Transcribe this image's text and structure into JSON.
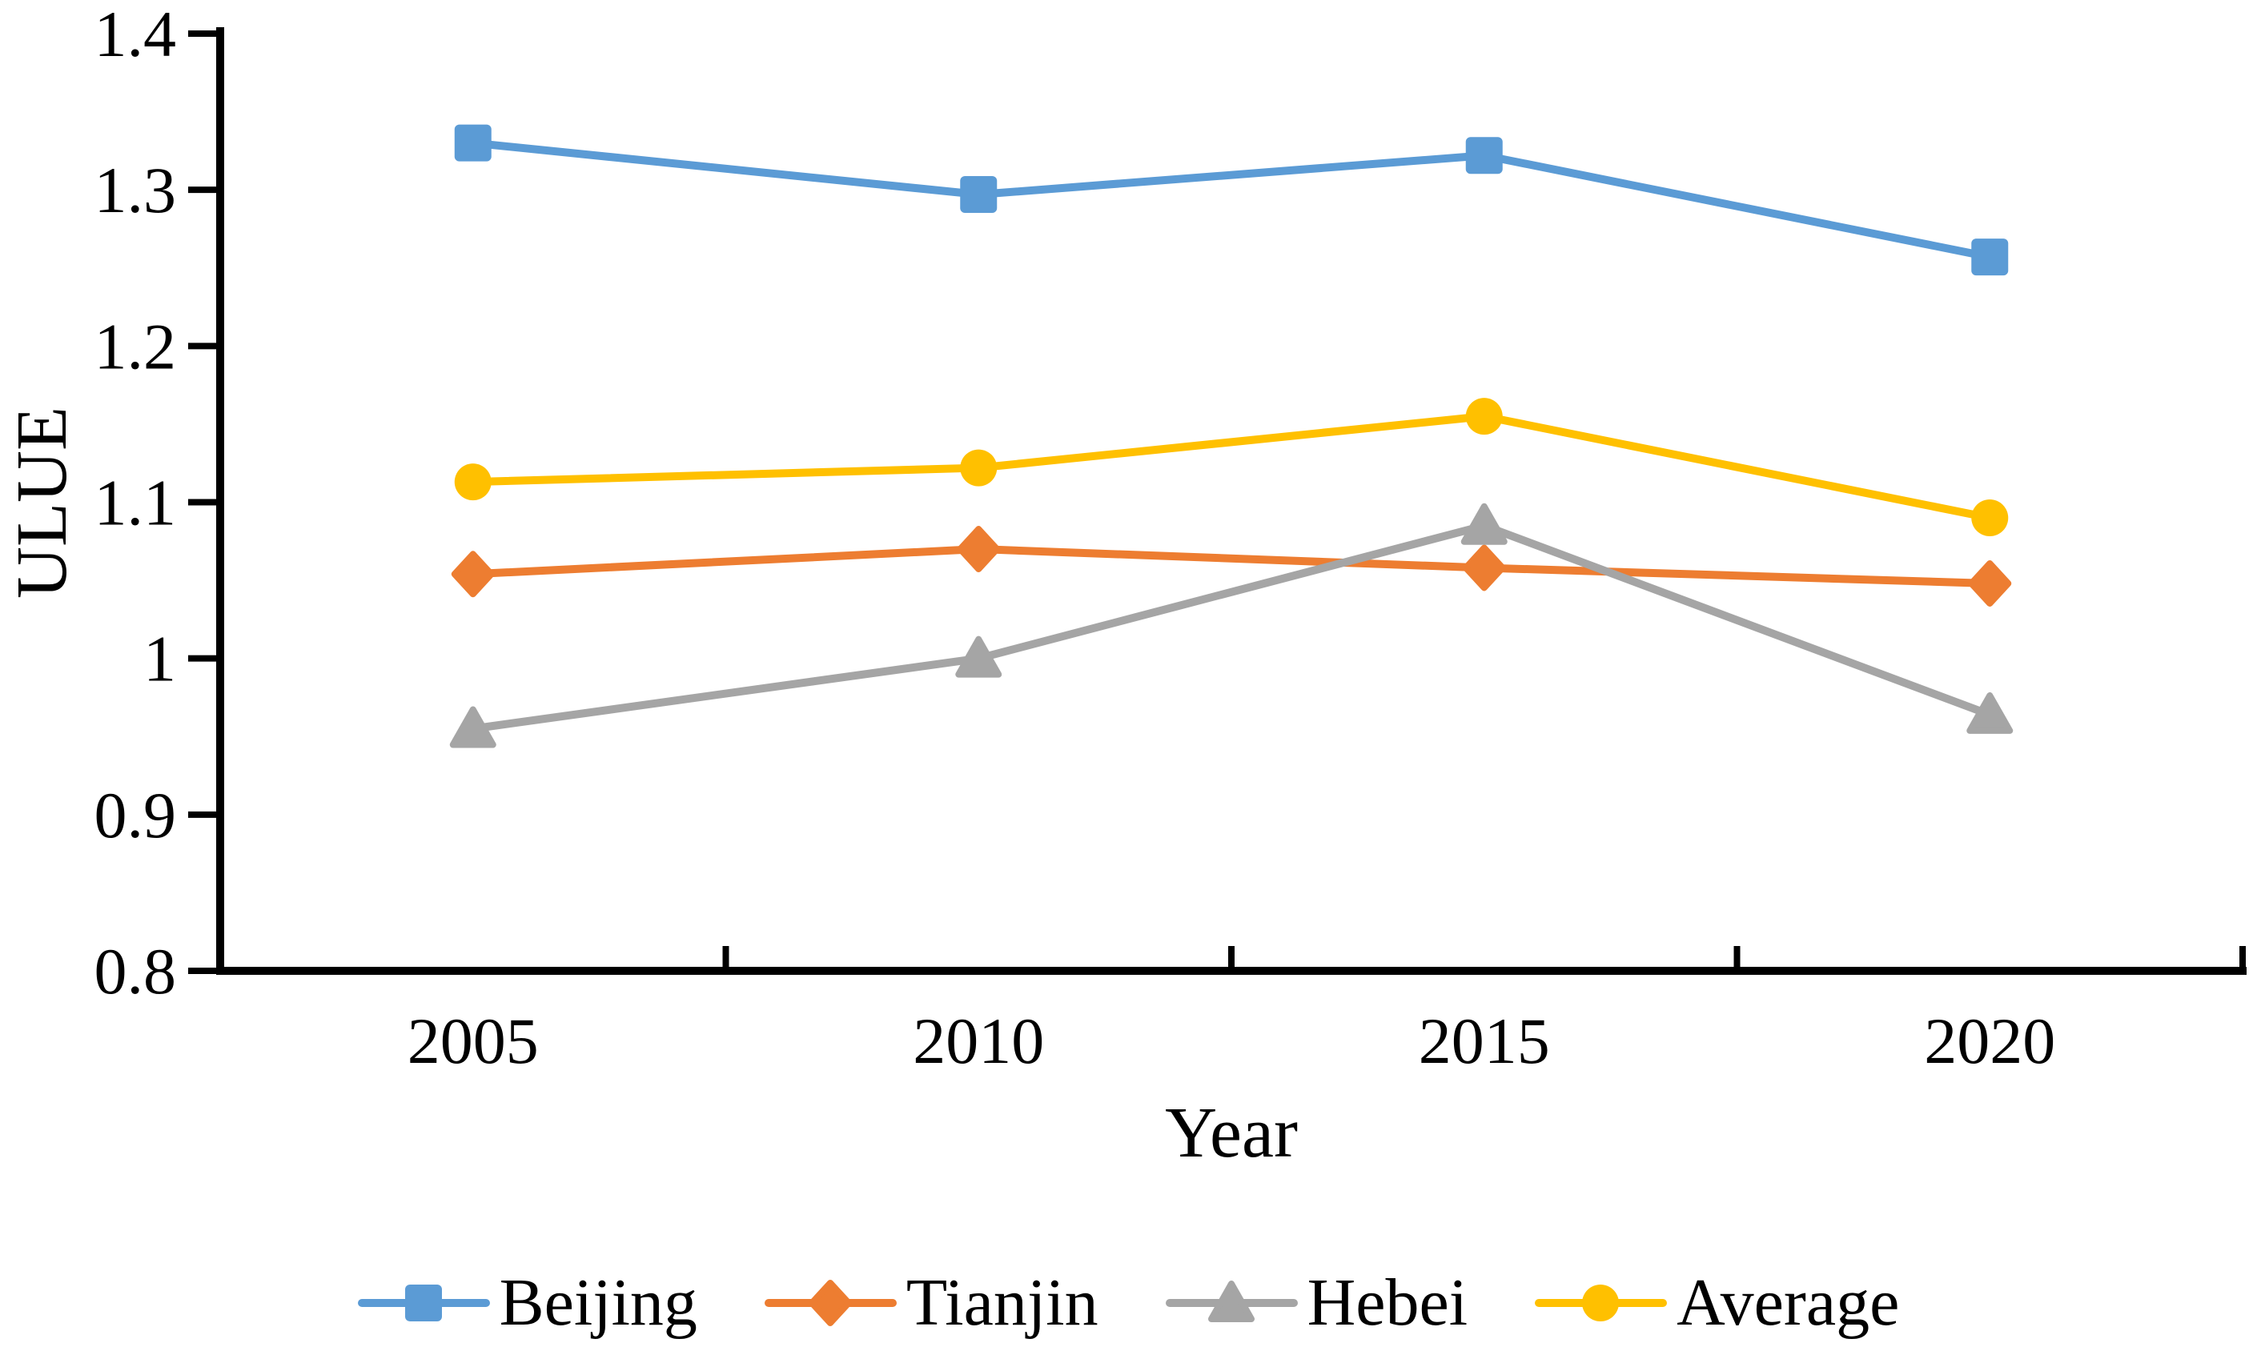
{
  "background": "#FFFFFF",
  "axis_color": "#000000",
  "chart_data": {
    "type": "line",
    "title": "",
    "xlabel": "Year",
    "ylabel": "ULUE",
    "categories": [
      "2005",
      "2010",
      "2015",
      "2020"
    ],
    "x": [
      2005,
      2010,
      2015,
      2020
    ],
    "series": [
      {
        "name": "Beijing",
        "color": "#5B9BD5",
        "marker": "square",
        "values": [
          1.33,
          1.297,
          1.322,
          1.257
        ]
      },
      {
        "name": "Tianjin",
        "color": "#ED7D31",
        "marker": "diamond",
        "values": [
          1.054,
          1.07,
          1.058,
          1.048
        ]
      },
      {
        "name": "Hebei",
        "color": "#A5A5A5",
        "marker": "triangle",
        "values": [
          0.955,
          1.0,
          1.085,
          0.964
        ]
      },
      {
        "name": "Average",
        "color": "#FFC000",
        "marker": "circle",
        "values": [
          1.113,
          1.122,
          1.155,
          1.09
        ]
      }
    ],
    "ylim": [
      0.8,
      1.4
    ],
    "ytick_step": 0.1,
    "ytick_labels": [
      "0.8",
      "0.9",
      "1",
      "1.1",
      "1.2",
      "1.3",
      "1.4"
    ],
    "grid": false,
    "legend_position": "bottom"
  }
}
